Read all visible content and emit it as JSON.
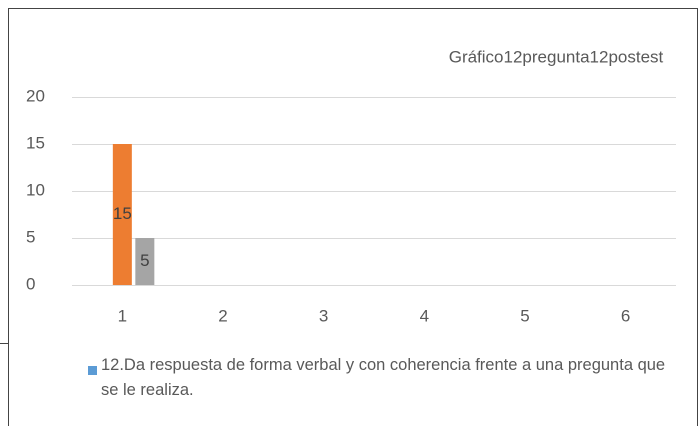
{
  "chart_data": {
    "type": "bar",
    "title": "Gráfico12pregunta12postest",
    "categories": [
      "1",
      "2",
      "3",
      "4",
      "5",
      "6"
    ],
    "series": [
      {
        "name": "12.Da respuesta de forma verbal y con coherencia frente a una pregunta que se le realiza.",
        "color": "#5b9bd5",
        "values": [
          null,
          null,
          null,
          null,
          null,
          null
        ]
      },
      {
        "color": "#ed7d31",
        "values": [
          15,
          null,
          null,
          null,
          null,
          null
        ]
      },
      {
        "color": "#a5a5a5",
        "values": [
          5,
          null,
          null,
          null,
          null,
          null
        ]
      }
    ],
    "ylim": [
      0,
      20
    ],
    "yticks": [
      0,
      5,
      10,
      15,
      20
    ],
    "grid": true,
    "legend": "bottom"
  }
}
